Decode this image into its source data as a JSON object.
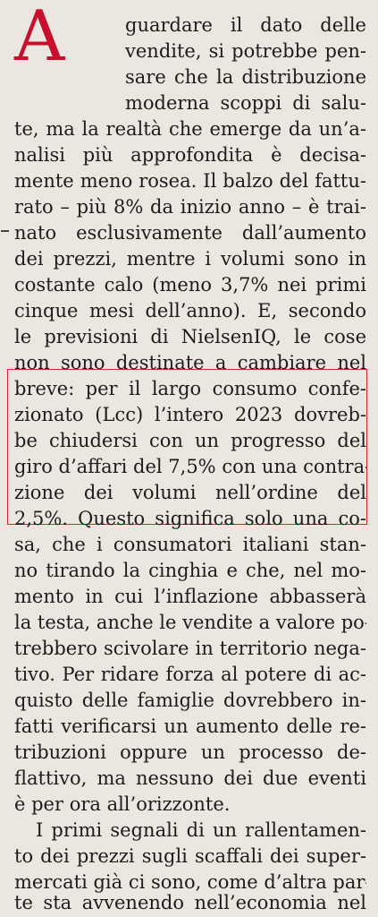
{
  "article": {
    "drop_cap": "A",
    "lines": [
      "guardare il dato delle",
      "vendite, si potrebbe pen-",
      "sare che la distribuzione",
      "moderna scoppi di salu-",
      "te, ma la realtà che emerge da un’a-",
      "nalisi più approfondita è decisa-",
      "mente meno rosea. Il balzo del fattu-",
      "rato – più 8% da inizio anno – è trai-",
      "nato esclusivamente dall’aumento",
      "dei prezzi, mentre i volumi sono in",
      "costante calo (meno 3,7% nei primi",
      "cinque mesi dell’anno). E, secondo",
      "le previsioni di NielsenIQ, le cose",
      "non sono destinate a cambiare nel",
      "breve: per il largo consumo confe-",
      "zionato (Lcc) l’intero 2023 dovreb-",
      "be chiudersi con un progresso del",
      "giro d’affari del 7,5% con una contra-",
      "zione dei volumi nell’ordine del",
      "2,5%. Questo significa solo una co-",
      "sa, che i consumatori italiani stan-",
      "no tirando la cinghia e che, nel mo-",
      "mento in cui l’inflazione abbasserà",
      "la testa, anche le vendite a valore po-",
      "trebbero scivolare in territorio nega-",
      "tivo. Per ridare forza al potere di ac-",
      "quisto delle famiglie dovrebbero in-",
      "fatti verificarsi un aumento delle re-",
      "tribuzioni oppure un processo de-",
      "flattivo, ma nessuno dei due eventi",
      "è per ora all’orizzonte.",
      "I primi segnali di un rallentamen-",
      "to dei prezzi sugli scaffali dei super-",
      "mercati già ci sono, come d’altra par-",
      "te sta avvenendo nell’economia nel"
    ]
  },
  "colors": {
    "drop_cap": "#c8102e",
    "highlight_border": "#d7262e",
    "paper": "#ebe7e0",
    "ink": "#1c1c1c"
  }
}
